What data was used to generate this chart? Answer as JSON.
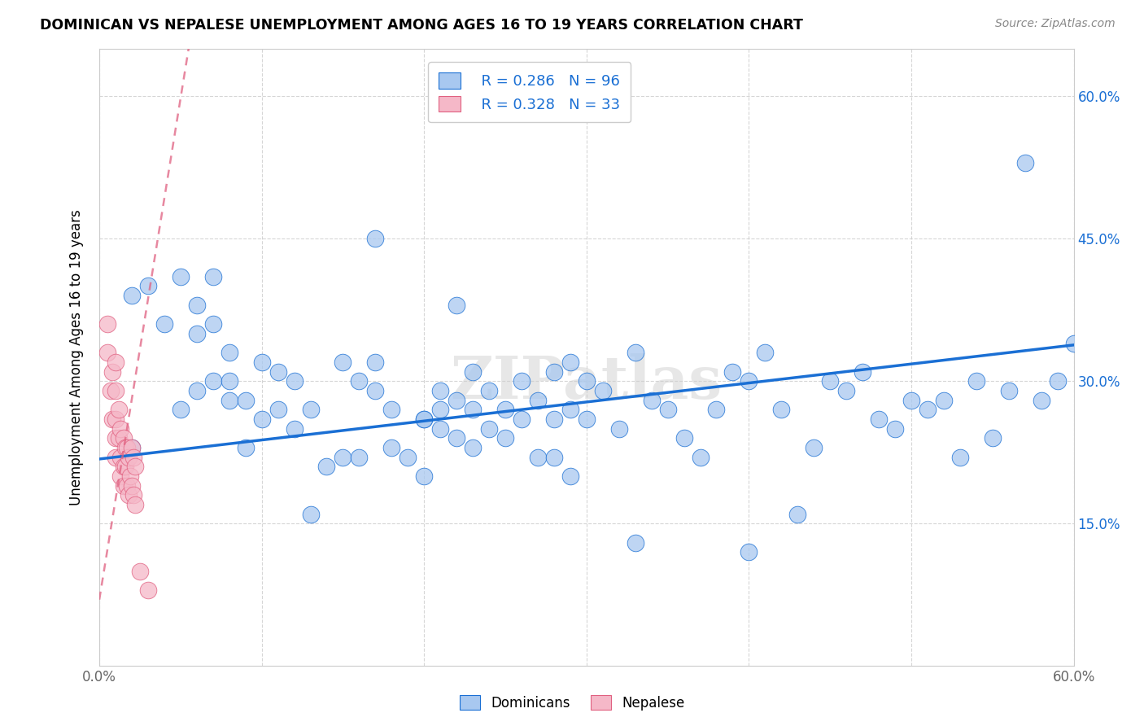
{
  "title": "DOMINICAN VS NEPALESE UNEMPLOYMENT AMONG AGES 16 TO 19 YEARS CORRELATION CHART",
  "source": "Source: ZipAtlas.com",
  "ylabel": "Unemployment Among Ages 16 to 19 years",
  "xlim": [
    0,
    0.6
  ],
  "ylim": [
    0,
    0.65
  ],
  "yticks": [
    0.15,
    0.3,
    0.45,
    0.6
  ],
  "ytick_labels": [
    "15.0%",
    "30.0%",
    "45.0%",
    "60.0%"
  ],
  "xtick_labels_bottom": [
    "0.0%",
    "60.0%"
  ],
  "xticks_bottom": [
    0.0,
    0.6
  ],
  "legend_bottom": [
    "Dominicans",
    "Nepalese"
  ],
  "legend_R_dom": "R = 0.286",
  "legend_N_dom": "N = 96",
  "legend_R_nep": "R = 0.328",
  "legend_N_nep": "N = 33",
  "dominican_color": "#a8c8f0",
  "nepalese_color": "#f5b8c8",
  "trend_dominican_color": "#1a6fd4",
  "trend_nepalese_color": "#e06080",
  "watermark": "ZIPatlas",
  "background_color": "#ffffff",
  "dom_trend_x0": 0.0,
  "dom_trend_y0": 0.218,
  "dom_trend_x1": 0.6,
  "dom_trend_y1": 0.338,
  "nep_trend_x0": 0.0,
  "nep_trend_y0": 0.07,
  "nep_trend_x1": 0.055,
  "nep_trend_y1": 0.65,
  "dominican_x": [
    0.02,
    0.02,
    0.03,
    0.04,
    0.05,
    0.05,
    0.06,
    0.06,
    0.06,
    0.07,
    0.07,
    0.08,
    0.08,
    0.08,
    0.09,
    0.09,
    0.1,
    0.1,
    0.11,
    0.11,
    0.12,
    0.12,
    0.13,
    0.14,
    0.15,
    0.15,
    0.16,
    0.16,
    0.17,
    0.17,
    0.18,
    0.18,
    0.19,
    0.2,
    0.2,
    0.21,
    0.21,
    0.22,
    0.22,
    0.23,
    0.23,
    0.23,
    0.24,
    0.24,
    0.25,
    0.25,
    0.26,
    0.26,
    0.27,
    0.27,
    0.28,
    0.28,
    0.28,
    0.29,
    0.29,
    0.3,
    0.3,
    0.31,
    0.32,
    0.33,
    0.34,
    0.35,
    0.36,
    0.37,
    0.38,
    0.39,
    0.4,
    0.4,
    0.41,
    0.42,
    0.43,
    0.44,
    0.45,
    0.46,
    0.47,
    0.48,
    0.49,
    0.5,
    0.51,
    0.52,
    0.53,
    0.54,
    0.55,
    0.56,
    0.57,
    0.58,
    0.59,
    0.6,
    0.07,
    0.13,
    0.17,
    0.2,
    0.21,
    0.22,
    0.29,
    0.33
  ],
  "dominican_y": [
    0.23,
    0.39,
    0.4,
    0.36,
    0.41,
    0.27,
    0.35,
    0.29,
    0.38,
    0.3,
    0.36,
    0.28,
    0.33,
    0.3,
    0.23,
    0.28,
    0.26,
    0.32,
    0.27,
    0.31,
    0.25,
    0.3,
    0.27,
    0.21,
    0.22,
    0.32,
    0.22,
    0.3,
    0.29,
    0.32,
    0.23,
    0.27,
    0.22,
    0.2,
    0.26,
    0.25,
    0.29,
    0.24,
    0.28,
    0.23,
    0.27,
    0.31,
    0.25,
    0.29,
    0.24,
    0.27,
    0.26,
    0.3,
    0.22,
    0.28,
    0.22,
    0.26,
    0.31,
    0.27,
    0.32,
    0.26,
    0.3,
    0.29,
    0.25,
    0.33,
    0.28,
    0.27,
    0.24,
    0.22,
    0.27,
    0.31,
    0.12,
    0.3,
    0.33,
    0.27,
    0.16,
    0.23,
    0.3,
    0.29,
    0.31,
    0.26,
    0.25,
    0.28,
    0.27,
    0.28,
    0.22,
    0.3,
    0.24,
    0.29,
    0.53,
    0.28,
    0.3,
    0.34,
    0.41,
    0.16,
    0.45,
    0.26,
    0.27,
    0.38,
    0.2,
    0.13
  ],
  "nepalese_x": [
    0.005,
    0.005,
    0.007,
    0.008,
    0.008,
    0.01,
    0.01,
    0.01,
    0.01,
    0.01,
    0.012,
    0.012,
    0.013,
    0.013,
    0.013,
    0.015,
    0.015,
    0.015,
    0.016,
    0.016,
    0.017,
    0.017,
    0.018,
    0.018,
    0.019,
    0.02,
    0.02,
    0.021,
    0.021,
    0.022,
    0.022,
    0.025,
    0.03
  ],
  "nepalese_y": [
    0.33,
    0.36,
    0.29,
    0.26,
    0.31,
    0.29,
    0.32,
    0.26,
    0.24,
    0.22,
    0.27,
    0.24,
    0.22,
    0.2,
    0.25,
    0.24,
    0.21,
    0.19,
    0.23,
    0.21,
    0.19,
    0.23,
    0.18,
    0.22,
    0.2,
    0.19,
    0.23,
    0.18,
    0.22,
    0.17,
    0.21,
    0.1,
    0.08
  ]
}
